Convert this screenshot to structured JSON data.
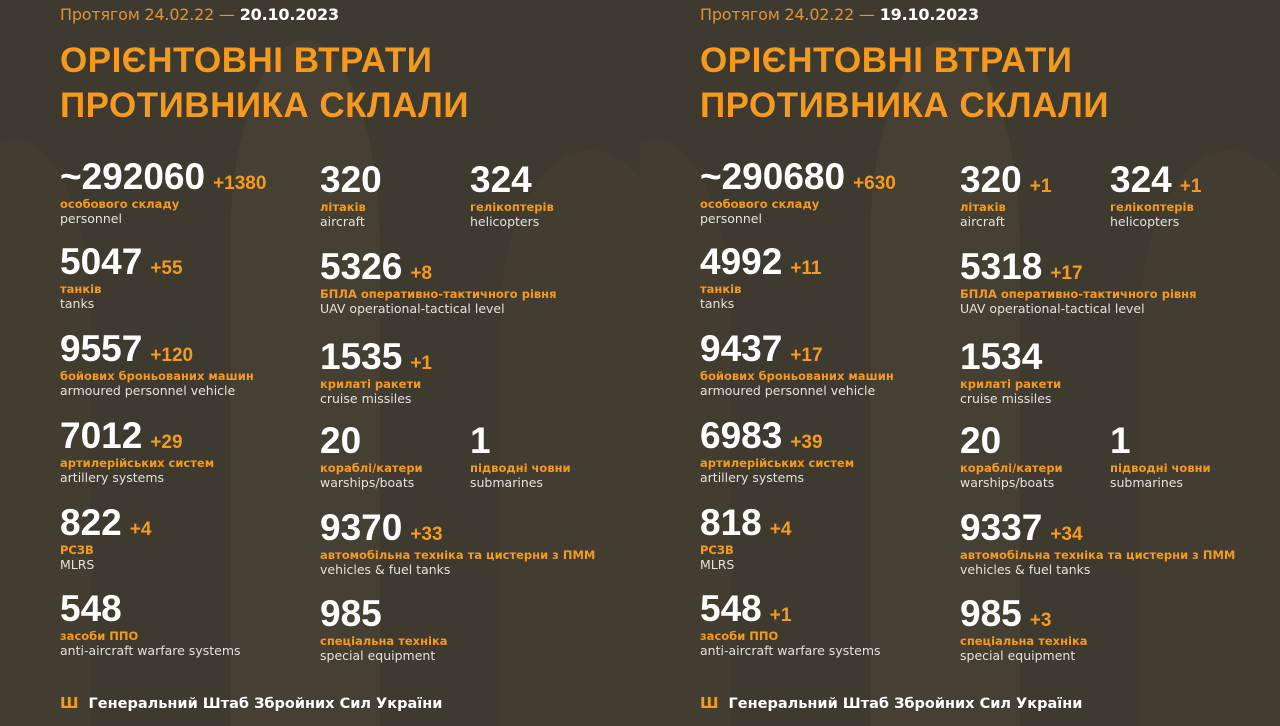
{
  "colors": {
    "background": "#3e3a2f",
    "accent": "#f59a1f",
    "text": "#ffffff"
  },
  "panels": [
    {
      "period_prefix": "Протягом 24.02.22 —",
      "period_date": "20.10.2023",
      "title_line1": "ОРІЄНТОВНІ ВТРАТИ",
      "title_line2": "ПРОТИВНИКА СКЛАЛИ",
      "items": [
        {
          "value": "~292060",
          "delta": "+1380",
          "ua": "особового складу",
          "en": "personnel"
        },
        {
          "value": "320",
          "delta": "",
          "ua": "літаків",
          "en": "aircraft"
        },
        {
          "value": "324",
          "delta": "",
          "ua": "гелікоптерів",
          "en": "helicopters"
        },
        {
          "value": "5047",
          "delta": "+55",
          "ua": "танків",
          "en": "tanks"
        },
        {
          "value": "5326",
          "delta": "+8",
          "ua": "БПЛА оперативно-тактичного рівня",
          "en": "UAV operational-tactical level"
        },
        {
          "value": "9557",
          "delta": "+120",
          "ua": "бойових броньованих машин",
          "en": "armoured personnel vehicle"
        },
        {
          "value": "1535",
          "delta": "+1",
          "ua": "крилаті ракети",
          "en": "cruise missiles"
        },
        {
          "value": "7012",
          "delta": "+29",
          "ua": "артилерійських систем",
          "en": "artillery systems"
        },
        {
          "value": "20",
          "delta": "",
          "ua": "кораблі/катери",
          "en": "warships/boats"
        },
        {
          "value": "1",
          "delta": "",
          "ua": "підводні човни",
          "en": "submarines"
        },
        {
          "value": "822",
          "delta": "+4",
          "ua": "РСЗВ",
          "en": "MLRS"
        },
        {
          "value": "9370",
          "delta": "+33",
          "ua": "автомобільна техніка та цистерни з ПММ",
          "en": "vehicles & fuel tanks"
        },
        {
          "value": "548",
          "delta": "",
          "ua": "засоби ППО",
          "en": "anti-aircraft warfare systems"
        },
        {
          "value": "985",
          "delta": "",
          "ua": "спеціальна техніка",
          "en": "special equipment"
        }
      ],
      "footer": "Генеральний Штаб Збройних Сил України",
      "footer_icon": "tryzub-icon"
    },
    {
      "period_prefix": "Протягом 24.02.22 —",
      "period_date": "19.10.2023",
      "title_line1": "ОРІЄНТОВНІ ВТРАТИ",
      "title_line2": "ПРОТИВНИКА СКЛАЛИ",
      "items": [
        {
          "value": "~290680",
          "delta": "+630",
          "ua": "особового складу",
          "en": "personnel"
        },
        {
          "value": "320",
          "delta": "+1",
          "ua": "літаків",
          "en": "aircraft"
        },
        {
          "value": "324",
          "delta": "+1",
          "ua": "гелікоптерів",
          "en": "helicopters"
        },
        {
          "value": "4992",
          "delta": "+11",
          "ua": "танків",
          "en": "tanks"
        },
        {
          "value": "5318",
          "delta": "+17",
          "ua": "БПЛА оперативно-тактичного рівня",
          "en": "UAV operational-tactical level"
        },
        {
          "value": "9437",
          "delta": "+17",
          "ua": "бойових броньованих машин",
          "en": "armoured personnel vehicle"
        },
        {
          "value": "1534",
          "delta": "",
          "ua": "крилаті ракети",
          "en": "cruise missiles"
        },
        {
          "value": "6983",
          "delta": "+39",
          "ua": "артилерійських систем",
          "en": "artillery systems"
        },
        {
          "value": "20",
          "delta": "",
          "ua": "кораблі/катери",
          "en": "warships/boats"
        },
        {
          "value": "1",
          "delta": "",
          "ua": "підводні човни",
          "en": "submarines"
        },
        {
          "value": "818",
          "delta": "+4",
          "ua": "РСЗВ",
          "en": "MLRS"
        },
        {
          "value": "9337",
          "delta": "+34",
          "ua": "автомобільна техніка та цистерни з ПММ",
          "en": "vehicles & fuel tanks"
        },
        {
          "value": "548",
          "delta": "+1",
          "ua": "засоби ППО",
          "en": "anti-aircraft warfare systems"
        },
        {
          "value": "985",
          "delta": "+3",
          "ua": "спеціальна техніка",
          "en": "special equipment"
        }
      ],
      "footer": "Генеральний Штаб Збройних Сил України",
      "footer_icon": "tryzub-icon"
    }
  ]
}
